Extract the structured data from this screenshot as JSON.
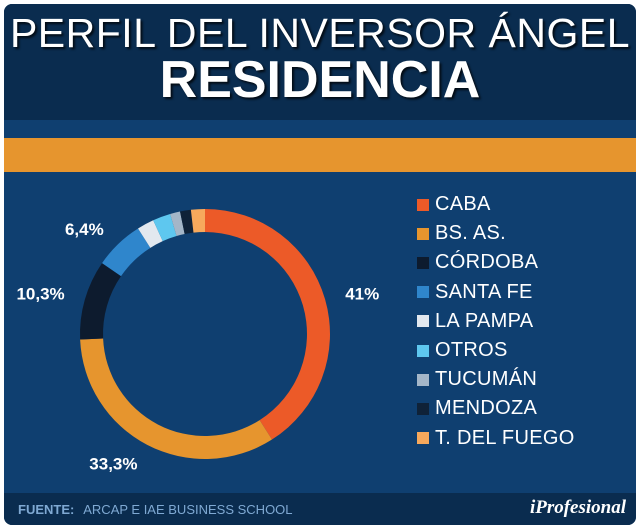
{
  "header": {
    "title_line1": "PERFIL DEL INVERSOR ÁNGEL",
    "title_line2": "RESIDENCIA"
  },
  "chart_data": {
    "type": "pie",
    "variant": "donut",
    "title": "PERFIL DEL INVERSOR ÁNGEL RESIDENCIA",
    "legend_position": "right",
    "categories": [
      "CABA",
      "BS. AS.",
      "CÓRDOBA",
      "SANTA FE",
      "LA PAMPA",
      "OTROS",
      "TUCUMÁN",
      "MENDOZA",
      "T. DEL FUEGO"
    ],
    "values": [
      41,
      33.3,
      10.3,
      6.4,
      2.2,
      2.3,
      1.3,
      1.4,
      1.8
    ],
    "data_labels": [
      "41%",
      "33,3%",
      "10,3%",
      "6,4%",
      "",
      "",
      "",
      "",
      ""
    ],
    "colors": [
      "#ec5a28",
      "#e6952e",
      "#0d1b2e",
      "#2f86cc",
      "#e2e8ef",
      "#5ec7ef",
      "#a4b6c8",
      "#0f2238",
      "#f7a95c"
    ]
  },
  "footer": {
    "source_label": "FUENTE:",
    "source_text": "ARCAP E IAE BUSINESS SCHOOL",
    "brand": "iProfesional"
  }
}
